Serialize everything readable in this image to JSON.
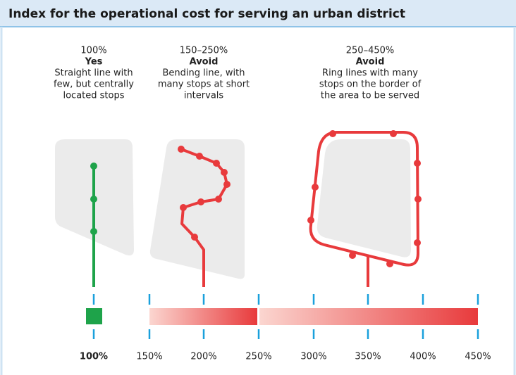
{
  "title": "Index for the operational cost for serving an urban district",
  "panels": [
    {
      "range": "100%",
      "verdict": "Yes",
      "description": [
        "Straight line with",
        "few, but centrally",
        "located stops"
      ]
    },
    {
      "range": "150–250%",
      "verdict": "Avoid",
      "description": [
        "Bending line, with",
        "many stops at short",
        "intervals"
      ]
    },
    {
      "range": "250–450%",
      "verdict": "Avoid",
      "description": [
        "Ring lines with many",
        "stops on the border of",
        "the area to be served"
      ]
    }
  ],
  "scale": [
    "100%",
    "150%",
    "200%",
    "250%",
    "300%",
    "350%",
    "400%",
    "450%"
  ]
}
